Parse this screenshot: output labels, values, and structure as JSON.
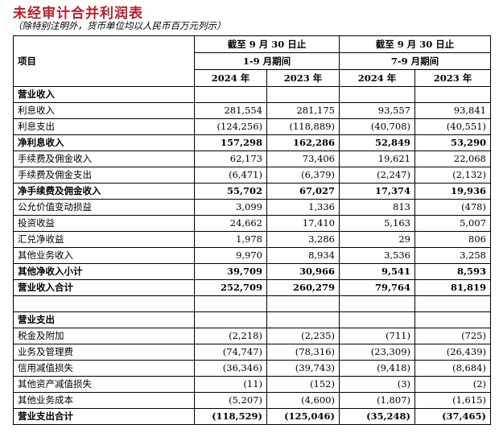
{
  "title": "未经审计合并利润表",
  "subtitle": "（除特别注明外，货币单位均以人民币百万元列示）",
  "header": {
    "item_label": "项目",
    "group1": {
      "line1": "截至 9 月 30 日止",
      "line2": "1-9 月期间"
    },
    "group2": {
      "line1": "截至 9 月 30 日止",
      "line2": "7-9 月期间"
    },
    "years": [
      "2024 年",
      "2023 年",
      "2024 年",
      "2023 年"
    ]
  },
  "rows": [
    {
      "label": "营业收入",
      "bold": true,
      "values": [
        "",
        "",
        "",
        ""
      ]
    },
    {
      "label": "利息收入",
      "bold": false,
      "values": [
        "281,554",
        "281,175",
        "93,557",
        "93,841"
      ]
    },
    {
      "label": "利息支出",
      "bold": false,
      "values": [
        "(124,256)",
        "(118,889)",
        "(40,708)",
        "(40,551)"
      ]
    },
    {
      "label": "净利息收入",
      "bold": true,
      "values": [
        "157,298",
        "162,286",
        "52,849",
        "53,290"
      ]
    },
    {
      "label": "手续费及佣金收入",
      "bold": false,
      "values": [
        "62,173",
        "73,406",
        "19,621",
        "22,068"
      ]
    },
    {
      "label": "手续费及佣金支出",
      "bold": false,
      "values": [
        "(6,471)",
        "(6,379)",
        "(2,247)",
        "(2,132)"
      ]
    },
    {
      "label": "净手续费及佣金收入",
      "bold": true,
      "values": [
        "55,702",
        "67,027",
        "17,374",
        "19,936"
      ]
    },
    {
      "label": "公允价值变动损益",
      "bold": false,
      "values": [
        "3,099",
        "1,336",
        "813",
        "(478)"
      ]
    },
    {
      "label": "投资收益",
      "bold": false,
      "values": [
        "24,662",
        "17,410",
        "5,163",
        "5,007"
      ]
    },
    {
      "label": "汇兑净收益",
      "bold": false,
      "values": [
        "1,978",
        "3,286",
        "29",
        "806"
      ]
    },
    {
      "label": "其他业务收入",
      "bold": false,
      "values": [
        "9,970",
        "8,934",
        "3,536",
        "3,258"
      ]
    },
    {
      "label": "其他净收入小计",
      "bold": true,
      "values": [
        "39,709",
        "30,966",
        "9,541",
        "8,593"
      ]
    },
    {
      "label": "营业收入合计",
      "bold": true,
      "values": [
        "252,709",
        "260,279",
        "79,764",
        "81,819"
      ]
    },
    {
      "label": "",
      "bold": false,
      "values": [
        "",
        "",
        "",
        ""
      ]
    },
    {
      "label": "营业支出",
      "bold": true,
      "values": [
        "",
        "",
        "",
        ""
      ]
    },
    {
      "label": "税金及附加",
      "bold": false,
      "values": [
        "(2,218)",
        "(2,235)",
        "(711)",
        "(725)"
      ]
    },
    {
      "label": "业务及管理费",
      "bold": false,
      "values": [
        "(74,747)",
        "(78,316)",
        "(23,309)",
        "(26,439)"
      ]
    },
    {
      "label": "信用减值损失",
      "bold": false,
      "values": [
        "(36,346)",
        "(39,743)",
        "(9,418)",
        "(8,684)"
      ]
    },
    {
      "label": "其他资产减值损失",
      "bold": false,
      "values": [
        "(11)",
        "(152)",
        "(3)",
        "(2)"
      ]
    },
    {
      "label": "其他业务成本",
      "bold": false,
      "values": [
        "(5,207)",
        "(4,600)",
        "(1,807)",
        "(1,615)"
      ]
    },
    {
      "label": "营业支出合计",
      "bold": true,
      "values": [
        "(118,529)",
        "(125,046)",
        "(35,248)",
        "(37,465)"
      ]
    }
  ]
}
